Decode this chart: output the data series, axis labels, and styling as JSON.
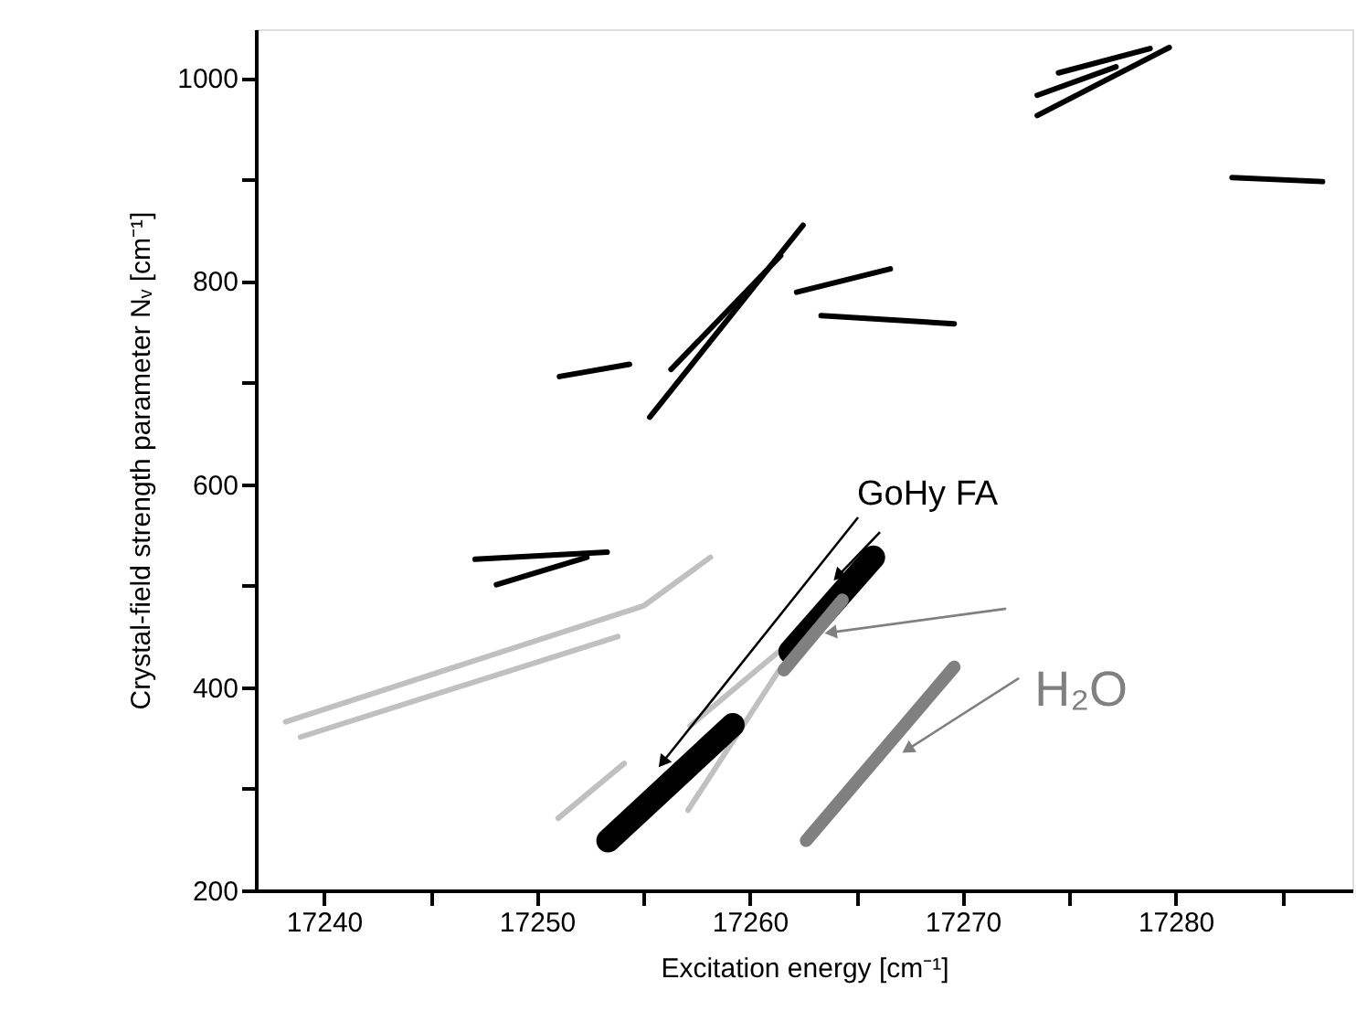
{
  "chart_data": {
    "type": "line",
    "xlabel": "Excitation energy  [cm⁻¹]",
    "ylabel": "Crystal-field strength parameter Nᵥ  [cm⁻¹]",
    "xlim": [
      17236.8,
      17288.3
    ],
    "ylim": [
      200,
      1048
    ],
    "xticks": [
      17240,
      {
        "value": 17245,
        "label": null
      },
      17250,
      {
        "value": 17255,
        "label": null
      },
      17260,
      {
        "value": 17265,
        "label": null
      },
      17270,
      {
        "value": 17275,
        "label": null
      },
      17280,
      {
        "value": 17285,
        "label": null
      }
    ],
    "yticks": [
      200,
      {
        "value": 300,
        "label": null
      },
      400,
      {
        "value": 500,
        "label": null
      },
      600,
      {
        "value": 700,
        "label": null
      },
      800,
      {
        "value": 900,
        "label": null
      },
      1000
    ],
    "grid": false,
    "marker": "none",
    "line_style": "solid",
    "series": [
      {
        "color": "#c0c0c0",
        "x": [
          17238.2,
          17255.0,
          17258.15
        ],
        "values": [
          366,
          480,
          528
        ]
      },
      {
        "color": "#c0c0c0",
        "x": [
          17238.9,
          17253.8
        ],
        "values": [
          351,
          450
        ]
      },
      {
        "color": "#c0c0c0",
        "x": [
          17251.0,
          17254.1
        ],
        "values": [
          271,
          325
        ]
      },
      {
        "color": "#c0c0c0",
        "x": [
          17257.2,
          17261.35
        ],
        "values": [
          362,
          435
        ]
      },
      {
        "color": "#c0c0c0",
        "x": [
          17257.1,
          17261.35
        ],
        "values": [
          279,
          416
        ]
      },
      {
        "color": "#000000",
        "x": [
          17247.1,
          17253.3
        ],
        "values": [
          526,
          533
        ]
      },
      {
        "color": "#000000",
        "x": [
          17248.1,
          17252.35
        ],
        "values": [
          501,
          528
        ]
      },
      {
        "color": "#000000",
        "x": [
          17251.06,
          17254.35
        ],
        "values": [
          706,
          718
        ]
      },
      {
        "color": "#000000",
        "x": [
          17255.3,
          17262.5
        ],
        "values": [
          666,
          855
        ]
      },
      {
        "color": "#000000",
        "x": [
          17256.3,
          17261.45
        ],
        "values": [
          713,
          825
        ]
      },
      {
        "color": "#000000",
        "x": [
          17262.2,
          17266.6
        ],
        "values": [
          789,
          812
        ]
      },
      {
        "color": "#000000",
        "x": [
          17263.35,
          17269.6
        ],
        "values": [
          766,
          758
        ]
      },
      {
        "color": "#000000",
        "x": [
          17273.5,
          17279.7
        ],
        "values": [
          963,
          1030
        ]
      },
      {
        "color": "#000000",
        "x": [
          17273.5,
          17277.2
        ],
        "values": [
          983,
          1011
        ]
      },
      {
        "color": "#000000",
        "x": [
          17274.5,
          17278.8
        ],
        "values": [
          1005,
          1029
        ]
      },
      {
        "color": "#000000",
        "x": [
          17282.65,
          17286.9
        ],
        "values": [
          902,
          898
        ]
      },
      {
        "color": "#000000",
        "x": [
          17253.35,
          17259.2
        ],
        "values": [
          249,
          363
        ]
      },
      {
        "color": "#000000",
        "x": [
          17261.9,
          17265.8
        ],
        "values": [
          435,
          528
        ]
      },
      {
        "color": "#808080",
        "x": [
          17261.6,
          17264.35
        ],
        "values": [
          417,
          486
        ]
      },
      {
        "color": "#808080",
        "x": [
          17262.65,
          17269.6
        ],
        "values": [
          249,
          420
        ]
      }
    ],
    "annotations": [
      {
        "text": "GoHy FA",
        "x": 17255.9,
        "y": 326
      },
      {
        "text": "H₂O",
        "x": 17263.8,
        "y": 454
      }
    ]
  }
}
